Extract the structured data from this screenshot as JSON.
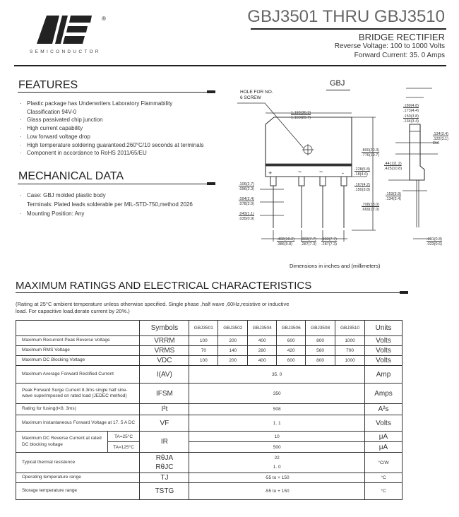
{
  "header": {
    "title": "GBJ3501 THRU GBJ3510",
    "subtitle": "BRIDGE RECTIFIER",
    "reverse_voltage": "Reverse Voltage: 100 to 1000 Volts",
    "forward_current": "Forward Current: 35. 0 Amps",
    "logo_text": "SEMICONDUCTOR",
    "registered": "®"
  },
  "features": {
    "title": "FEATURES",
    "items": [
      "Plastic package has Underwriters Laboratory Flammability",
      "Classification 94V-0",
      "Glass passivated chip junction",
      "High  current  capability",
      "Low  forward  voltage drop",
      "High temperature soldering guaranteed:260°C/10 seconds at terminals",
      "Component in accordance to RoHS 2011/65/EU"
    ]
  },
  "mechanical": {
    "title": "MECHANICAL DATA",
    "items": [
      "Case: GBJ molded plastic body",
      "Terminals: Plated  leads solderable per MIL-STD-750,method 2026",
      "Mounting Position: Any"
    ]
  },
  "diagram": {
    "package": "GBJ",
    "hole_label_1": "HOLE FOR NO.",
    "hole_label_2": "6 SCREW",
    "caption": "Dimensions in inches and (millimeters)",
    "dims": {
      "width": [
        "1.193(30.3)",
        "1.169(29.7)"
      ],
      "height": [
        ".800(20.3)",
        ".776(19.7)"
      ],
      "d228": [
        ".228(5.8)",
        ".18(4.6)"
      ],
      "d167": [
        ".167(4.2)",
        ".150(3.8)"
      ],
      "lead": [
        ".708(18.0)",
        ".669(17.0)"
      ],
      "d106": [
        ".106(2.7)",
        ".096(2.3)"
      ],
      "d094": [
        ".094(2.4)",
        ".078(2.0)"
      ],
      "d043": [
        ".043(1.1)",
        ".035(0.9)"
      ],
      "pitch1": [
        ".402(10.2)",
        ".386(9.8)"
      ],
      "pitch2": [
        ".303(7.7)",
        ".287(7.3)"
      ],
      "pitch3": [
        ".303(7.7)",
        ".287(7.3)"
      ],
      "t189": [
        ".189(4.8)",
        ".173(4.4)"
      ],
      "t150": [
        ".150(3.8)",
        ".134(3.4)"
      ],
      "dia": [
        ".134(3.4)",
        ".122(3.1)",
        "DIA"
      ],
      "d441": [
        ".441(11.2)",
        ".425(10.8)"
      ],
      "d153": [
        ".153(3.9)",
        ".134(3.4)"
      ],
      "d031": [
        ".031(0.8)",
        ".023(0.6)"
      ]
    },
    "pins": [
      "+",
      "~",
      "~",
      "-"
    ]
  },
  "ratings": {
    "title": "MAXIMUM RATINGS AND ELECTRICAL CHARACTERISTICS",
    "note_1": "(Rating at 25°C ambient temperature unless otherwise specified. Single phase ,half wave ,60Hz,resistive or inductive",
    "note_2": "load. For capacitive load,derate current by 20%.)",
    "headers": {
      "symbols": "Symbols",
      "parts": [
        "GBJ3501",
        "GBJ3502",
        "GBJ3504",
        "GBJ3506",
        "GBJ3508",
        "GBJ3510"
      ],
      "units": "Units"
    },
    "rows": [
      {
        "desc": "Maximum Recurrent Peak Reverse Voltage",
        "sym": "VRRM",
        "vals": [
          "100",
          "200",
          "400",
          "600",
          "800",
          "1000"
        ],
        "unit": "Volts"
      },
      {
        "desc": "Maximum RMS Voltage",
        "sym": "VRMS",
        "vals": [
          "70",
          "140",
          "280",
          "420",
          "560",
          "700"
        ],
        "unit": "Volts"
      },
      {
        "desc": "Maximum DC Blocking Voltage",
        "sym": "VDC",
        "vals": [
          "100",
          "200",
          "400",
          "600",
          "800",
          "1000"
        ],
        "unit": "Volts"
      }
    ],
    "avg": {
      "desc": "Maximum Average Forward Rectified Current",
      "sym": "I(AV)",
      "val": "35. 0",
      "unit": "Amp"
    },
    "surge": {
      "desc": "Peak Forward Surge Current 8.3ms single half sine-wave superimposed on rated load (JEDEC method)",
      "sym": "IFSM",
      "val": "350",
      "unit": "Amps"
    },
    "fusing": {
      "desc": "Rating for fusing(t<8. 3ms)",
      "sym": "I²t",
      "val": "508",
      "unit": "A²s"
    },
    "vf": {
      "desc": "Maximum Instantaneous Forward Voltage at 17. 5 A DC",
      "sym": "VF",
      "val": "1. 1",
      "unit": "Volts"
    },
    "ir": {
      "desc": "Maximum DC Reverse Current at rated DC blocking voltage",
      "cond1": "TA=25°C",
      "cond2": "TA=125°C",
      "sym": "IR",
      "val1": "10",
      "val2": "500",
      "unit1": "μA",
      "unit2": "μA"
    },
    "thermal": {
      "desc": "Typical thermal resistence",
      "sym1": "RθJA",
      "sym2": "RθJC",
      "val1": "22",
      "val2": "1. 0",
      "unit": "°C/W"
    },
    "tj": {
      "desc": "Operating temperature range",
      "sym": "TJ",
      "val": "-55 to + 150",
      "unit": "°C"
    },
    "tstg": {
      "desc": "Storage temperature range",
      "sym": "TSTG",
      "val": "-55 to + 150",
      "unit": "°C"
    }
  }
}
